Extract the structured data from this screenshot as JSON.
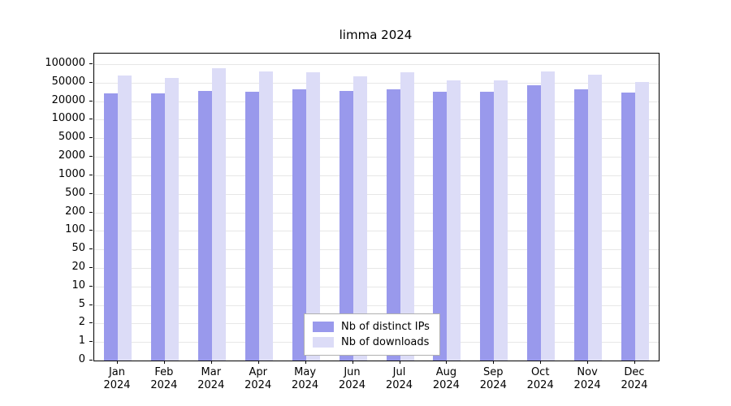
{
  "title": "limma 2024",
  "legend": [
    "Nb of distinct IPs",
    "Nb of downloads"
  ],
  "colors": {
    "distinct_ips": "#9999ec",
    "downloads": "#dcdcf7",
    "grid": "#e7e7e7",
    "axis": "#000000",
    "legend_border": "#b0b0b0"
  },
  "chart_data": {
    "type": "bar",
    "title": "limma 2024",
    "xlabel": "",
    "ylabel": "",
    "grid": "horizontal",
    "legend_position": "bottom-center-inside",
    "yscale": "log",
    "year": "2024",
    "yticks": [
      0,
      1,
      2,
      5,
      10,
      20,
      50,
      100,
      200,
      500,
      1000,
      2000,
      5000,
      10000,
      20000,
      50000,
      100000
    ],
    "categories": [
      "Jan",
      "Feb",
      "Mar",
      "Apr",
      "May",
      "Jun",
      "Jul",
      "Aug",
      "Sep",
      "Oct",
      "Nov",
      "Dec"
    ],
    "series": [
      {
        "name": "Nb of distinct IPs",
        "color": "#9999ec",
        "values": [
          30000,
          29500,
          33000,
          32000,
          36500,
          33500,
          35500,
          32500,
          32500,
          44000,
          36000,
          30500
        ]
      },
      {
        "name": "Nb of downloads",
        "color": "#dcdcf7",
        "values": [
          65000,
          60000,
          87000,
          77000,
          74000,
          63000,
          74000,
          55000,
          55000,
          77000,
          68000,
          52000
        ]
      }
    ]
  }
}
